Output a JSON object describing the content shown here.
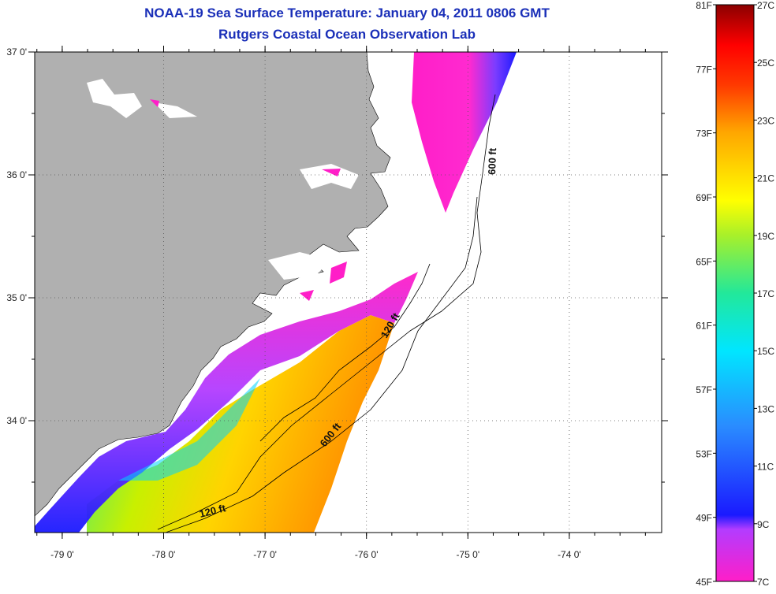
{
  "title": "NOAA-19 Sea Surface Temperature:  January 04, 2011 0806 GMT",
  "subtitle": "Rutgers Coastal Ocean Observation Lab",
  "lat_labels": [
    "37 0'",
    "36 0'",
    "35 0'",
    "34 0'"
  ],
  "lat_values": [
    37,
    36,
    35,
    34
  ],
  "lon_labels": [
    "-79 0'",
    "-78 0'",
    "-77 0'",
    "-76 0'",
    "-75 0'",
    "-74 0'"
  ],
  "lon_values": [
    -79,
    -78,
    -77,
    -76,
    -75,
    -74
  ],
  "contour_labels": [
    "600 ft",
    "120 ft",
    "600 ft",
    "120 ft"
  ],
  "colorbar": {
    "f_labels": [
      "81F",
      "77F",
      "73F",
      "69F",
      "65F",
      "61F",
      "57F",
      "53F",
      "49F",
      "45F"
    ],
    "c_labels": [
      "27C",
      "25C",
      "23C",
      "21C",
      "19C",
      "17C",
      "15C",
      "13C",
      "11C",
      "9C",
      "7C"
    ],
    "colors": [
      "#ff1ec8",
      "#b33cff",
      "#1a1aff",
      "#2a8cff",
      "#00e6ff",
      "#22e89a",
      "#a8f02a",
      "#ffff00",
      "#ffa500",
      "#ff3a00",
      "#ff0000",
      "#8b0000"
    ]
  },
  "colors": {
    "land": "#b0b0b0",
    "ocean_nodata": "#ffffff",
    "title": "#1a2fb8"
  }
}
